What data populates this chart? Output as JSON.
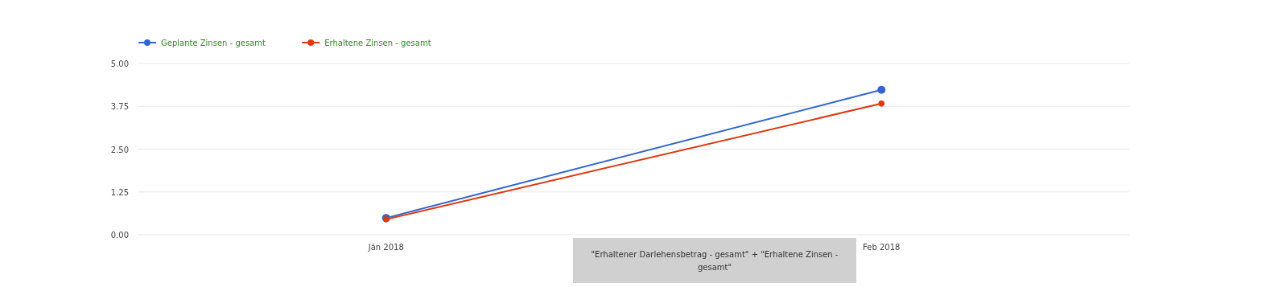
{
  "chart_data": {
    "type": "line",
    "categories": [
      "Jän 2018",
      "Feb 2018"
    ],
    "series": [
      {
        "name": "Geplante Zinsen - gesamt",
        "color": "#3366cc",
        "values": [
          0.49,
          4.23
        ]
      },
      {
        "name": "Erhaltene Zinsen - gesamt",
        "color": "#dc3912",
        "values": [
          0.45,
          3.83
        ]
      }
    ],
    "ylim": [
      0,
      5
    ],
    "yticks": [
      {
        "value": 0,
        "label": "0.00"
      },
      {
        "value": 1.25,
        "label": "1.25"
      },
      {
        "value": 2.5,
        "label": "2.50"
      },
      {
        "value": 3.75,
        "label": "3.75"
      },
      {
        "value": 5,
        "label": "5.00"
      }
    ],
    "grid": "y",
    "legend": "top left",
    "marker": "circle",
    "line_style": "solid",
    "annotations": [
      "\"Erhaltener Darlehensbetrag - gesamt\" + \"Erhaltene Zinsen - gesamt\""
    ]
  }
}
